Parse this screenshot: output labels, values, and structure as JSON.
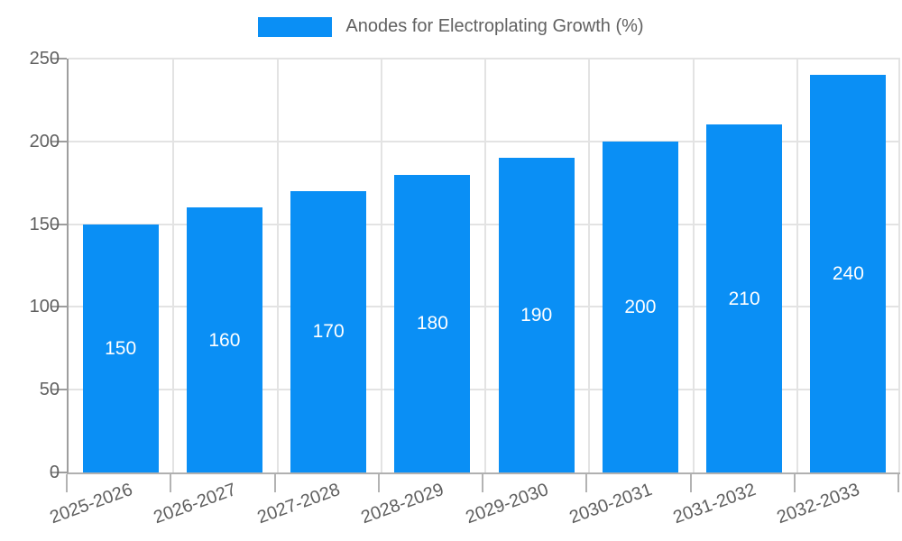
{
  "chart_data": {
    "type": "bar",
    "title": "",
    "legend": {
      "label": "Anodes for Electroplating Growth (%)",
      "position": "top-center"
    },
    "categories": [
      "2025-2026",
      "2026-2027",
      "2027-2028",
      "2028-2029",
      "2029-2030",
      "2030-2031",
      "2031-2032",
      "2032-2033"
    ],
    "values": [
      150,
      160,
      170,
      180,
      190,
      200,
      210,
      240
    ],
    "value_labels_shown": true,
    "xlabel": "",
    "ylabel": "",
    "ylim": [
      0,
      250
    ],
    "yticks": [
      0,
      50,
      100,
      150,
      200,
      250
    ],
    "grid": true,
    "x_label_rotation_deg": -20
  },
  "colors": {
    "bar": "#0a8ff5",
    "value_label": "#ffffff",
    "axis_text": "#5f5f5f",
    "legend_text": "#616161",
    "gridline": "#e3e3e3",
    "axis_line": "#9e9e9e",
    "baseline": "#b0b0b0",
    "tick": "#b3b3b3",
    "background": "#ffffff"
  }
}
